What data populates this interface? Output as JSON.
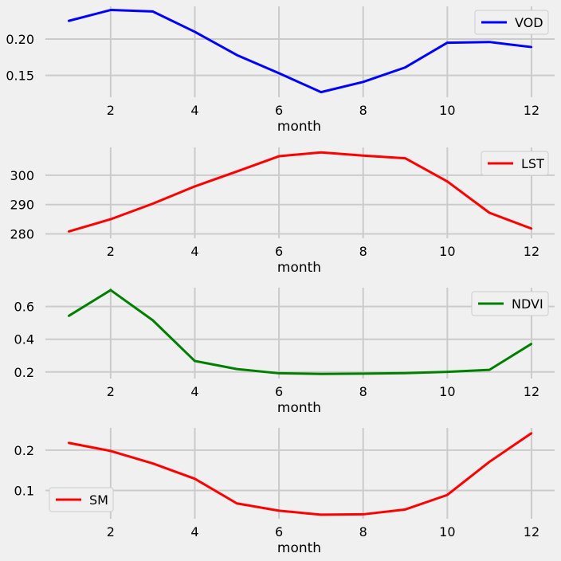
{
  "figure": {
    "background": "#f0f0f0",
    "style": "fivethirtyeight"
  },
  "chart_data": [
    {
      "type": "line",
      "xlabel": "month",
      "ylabel": "",
      "x": [
        1,
        2,
        3,
        4,
        5,
        6,
        7,
        8,
        9,
        10,
        11,
        12
      ],
      "xticks": [
        2,
        4,
        6,
        8,
        10,
        12
      ],
      "xticklabels": [
        "2",
        "4",
        "6",
        "8",
        "10",
        "12"
      ],
      "xlim": [
        0.45,
        12.55
      ],
      "ylim": [
        0.12,
        0.245
      ],
      "yticks": [
        0.15,
        0.2
      ],
      "yticklabels": [
        "0.15",
        "0.20"
      ],
      "grid": true,
      "legend_position": "upper right",
      "series": [
        {
          "name": "VOD",
          "color": "#0000ff",
          "values": [
            0.225,
            0.24,
            0.238,
            0.21,
            0.178,
            0.153,
            0.127,
            0.141,
            0.161,
            0.195,
            0.196,
            0.189
          ]
        }
      ]
    },
    {
      "type": "line",
      "xlabel": "month",
      "ylabel": "",
      "x": [
        1,
        2,
        3,
        4,
        5,
        6,
        7,
        8,
        9,
        10,
        11,
        12
      ],
      "xticks": [
        2,
        4,
        6,
        8,
        10,
        12
      ],
      "xticklabels": [
        "2",
        "4",
        "6",
        "8",
        "10",
        "12"
      ],
      "xlim": [
        0.45,
        12.55
      ],
      "ylim": [
        278.5,
        309.5
      ],
      "yticks": [
        280,
        290,
        300
      ],
      "yticklabels": [
        "280",
        "290",
        "300"
      ],
      "grid": true,
      "legend_position": "upper right",
      "series": [
        {
          "name": "LST",
          "color": "#ff0000",
          "values": [
            280.8,
            285.0,
            290.3,
            296.2,
            301.3,
            306.5,
            307.8,
            306.7,
            305.8,
            297.9,
            287.2,
            281.8
          ]
        }
      ]
    },
    {
      "type": "line",
      "xlabel": "month",
      "ylabel": "",
      "x": [
        1,
        2,
        3,
        4,
        5,
        6,
        7,
        8,
        9,
        10,
        11,
        12
      ],
      "xticks": [
        2,
        4,
        6,
        8,
        10,
        12
      ],
      "xticklabels": [
        "2",
        "4",
        "6",
        "8",
        "10",
        "12"
      ],
      "xlim": [
        0.45,
        12.55
      ],
      "ylim": [
        0.16,
        0.715
      ],
      "yticks": [
        0.2,
        0.4,
        0.6
      ],
      "yticklabels": [
        "0.2",
        "0.4",
        "0.6"
      ],
      "grid": true,
      "legend_position": "upper right",
      "series": [
        {
          "name": "NDVI",
          "color": "#008000",
          "values": [
            0.542,
            0.7,
            0.516,
            0.267,
            0.218,
            0.192,
            0.188,
            0.19,
            0.193,
            0.201,
            0.213,
            0.372
          ]
        }
      ]
    },
    {
      "type": "line",
      "xlabel": "month",
      "ylabel": "",
      "x": [
        1,
        2,
        3,
        4,
        5,
        6,
        7,
        8,
        9,
        10,
        11,
        12
      ],
      "xticks": [
        2,
        4,
        6,
        8,
        10,
        12
      ],
      "xticklabels": [
        "2",
        "4",
        "6",
        "8",
        "10",
        "12"
      ],
      "xlim": [
        0.45,
        12.55
      ],
      "ylim": [
        0.03,
        0.255
      ],
      "yticks": [
        0.1,
        0.2
      ],
      "yticklabels": [
        "0.1",
        "0.2"
      ],
      "grid": true,
      "legend_position": "lower left",
      "series": [
        {
          "name": "SM",
          "color": "#ff0000",
          "values": [
            0.218,
            0.198,
            0.167,
            0.129,
            0.068,
            0.05,
            0.04,
            0.041,
            0.053,
            0.089,
            0.171,
            0.242
          ]
        }
      ]
    }
  ]
}
